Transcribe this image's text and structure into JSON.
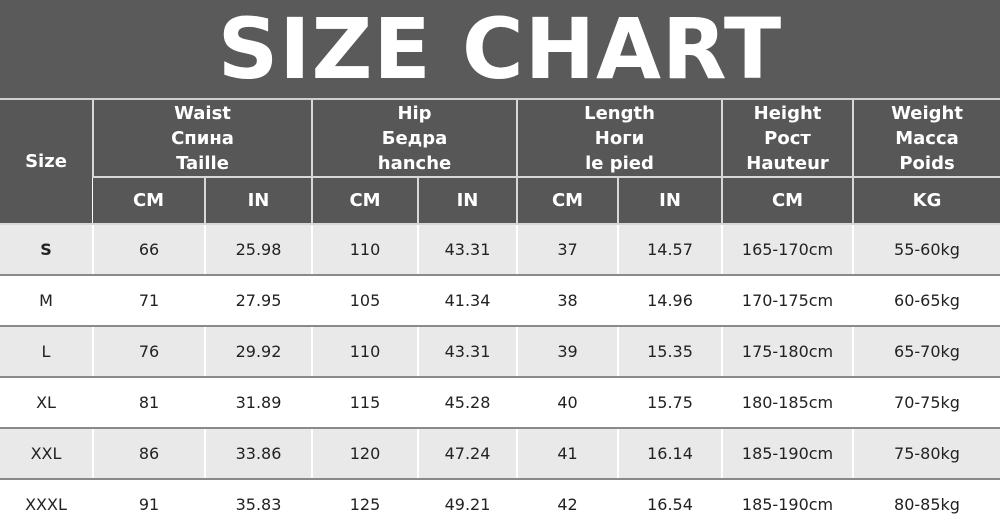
{
  "title": "SIZE CHART",
  "headers": {
    "size": "Size",
    "groups": [
      {
        "lines": [
          "Waist",
          "Спина",
          "Taille"
        ]
      },
      {
        "lines": [
          "Hip",
          "Бедра",
          "hanche"
        ]
      },
      {
        "lines": [
          "Length",
          "Ноги",
          "le pied"
        ]
      },
      {
        "lines": [
          "Height",
          "Рост",
          "Hauteur"
        ]
      },
      {
        "lines": [
          "Weight",
          "Масса",
          "Poids"
        ]
      }
    ],
    "units": [
      "CM",
      "IN",
      "CM",
      "IN",
      "CM",
      "IN",
      "CM",
      "KG"
    ]
  },
  "rows": [
    [
      "S",
      "66",
      "25.98",
      "110",
      "43.31",
      "37",
      "14.57",
      "165-170cm",
      "55-60kg"
    ],
    [
      "M",
      "71",
      "27.95",
      "105",
      "41.34",
      "38",
      "14.96",
      "170-175cm",
      "60-65kg"
    ],
    [
      "L",
      "76",
      "29.92",
      "110",
      "43.31",
      "39",
      "15.35",
      "175-180cm",
      "65-70kg"
    ],
    [
      "XL",
      "81",
      "31.89",
      "115",
      "45.28",
      "40",
      "15.75",
      "180-185cm",
      "70-75kg"
    ],
    [
      "XXL",
      "86",
      "33.86",
      "120",
      "47.24",
      "41",
      "16.14",
      "185-190cm",
      "75-80kg"
    ],
    [
      "XXXL",
      "91",
      "35.83",
      "125",
      "49.21",
      "42",
      "16.54",
      "185-190cm",
      "80-85kg"
    ]
  ]
}
